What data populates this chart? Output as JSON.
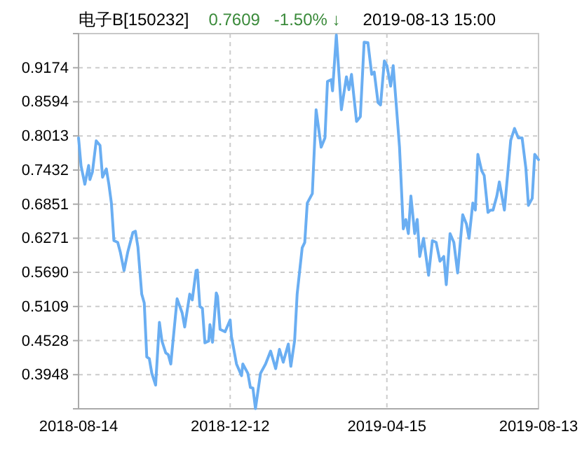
{
  "chart_data": {
    "type": "line",
    "title": "电子B[150232]",
    "annotations": [
      "0.7609",
      "-1.50% ↓",
      "2019-08-13 15:00"
    ],
    "x": [
      "2018-08-14",
      "2018-08-16",
      "2018-08-19",
      "2018-08-22",
      "2018-08-23",
      "2018-08-25",
      "2018-08-28",
      "2018-08-31",
      "2018-09-02",
      "2018-09-05",
      "2018-09-07",
      "2018-09-09",
      "2018-09-11",
      "2018-09-14",
      "2018-09-16",
      "2018-09-19",
      "2018-09-22",
      "2018-09-26",
      "2018-09-28",
      "2018-09-30",
      "2018-10-03",
      "2018-10-05",
      "2018-10-07",
      "2018-10-09",
      "2018-10-11",
      "2018-10-14",
      "2018-10-17",
      "2018-10-19",
      "2018-10-22",
      "2018-10-24",
      "2018-10-26",
      "2018-10-31",
      "2018-11-04",
      "2018-11-06",
      "2018-11-10",
      "2018-11-12",
      "2018-11-15",
      "2018-11-16",
      "2018-11-18",
      "2018-11-20",
      "2018-11-22",
      "2018-11-25",
      "2018-11-26",
      "2018-11-28",
      "2018-12-01",
      "2018-12-02",
      "2018-12-04",
      "2018-12-08",
      "2018-12-12",
      "2018-12-13",
      "2018-12-17",
      "2018-12-21",
      "2018-12-22",
      "2018-12-26",
      "2018-12-28",
      "2018-12-30",
      "2019-01-01",
      "2019-01-05",
      "2019-01-09",
      "2019-01-13",
      "2019-01-17",
      "2019-01-20",
      "2019-01-23",
      "2019-01-27",
      "2019-01-29",
      "2019-02-01",
      "2019-02-03",
      "2019-02-04",
      "2019-02-07",
      "2019-02-09",
      "2019-02-11",
      "2019-02-15",
      "2019-02-18",
      "2019-02-22",
      "2019-02-25",
      "2019-02-27",
      "2019-03-02",
      "2019-03-03",
      "2019-03-06",
      "2019-03-10",
      "2019-03-14",
      "2019-03-16",
      "2019-03-18",
      "2019-03-22",
      "2019-03-25",
      "2019-03-28",
      "2019-03-31",
      "2019-04-03",
      "2019-04-05",
      "2019-04-08",
      "2019-04-10",
      "2019-04-13",
      "2019-04-15",
      "2019-04-18",
      "2019-04-20",
      "2019-04-22",
      "2019-04-25",
      "2019-04-28",
      "2019-04-30",
      "2019-05-02",
      "2019-05-04",
      "2019-05-07",
      "2019-05-09",
      "2019-05-11",
      "2019-05-14",
      "2019-05-18",
      "2019-05-21",
      "2019-05-24",
      "2019-05-27",
      "2019-05-30",
      "2019-06-01",
      "2019-06-04",
      "2019-06-07",
      "2019-06-10",
      "2019-06-14",
      "2019-06-17",
      "2019-06-19",
      "2019-06-22",
      "2019-06-24",
      "2019-06-26",
      "2019-06-29",
      "2019-07-01",
      "2019-07-04",
      "2019-07-06",
      "2019-07-08",
      "2019-07-11",
      "2019-07-13",
      "2019-07-17",
      "2019-07-22",
      "2019-07-25",
      "2019-07-28",
      "2019-07-31",
      "2019-08-03",
      "2019-08-05",
      "2019-08-08",
      "2019-08-10",
      "2019-08-13"
    ],
    "series": [
      {
        "color": "#6aaef2",
        "values": [
          0.798,
          0.75,
          0.719,
          0.751,
          0.727,
          0.74,
          0.793,
          0.785,
          0.731,
          0.745,
          0.719,
          0.687,
          0.623,
          0.62,
          0.604,
          0.572,
          0.604,
          0.637,
          0.639,
          0.612,
          0.532,
          0.517,
          0.425,
          0.422,
          0.397,
          0.377,
          0.484,
          0.452,
          0.432,
          0.429,
          0.413,
          0.524,
          0.5,
          0.476,
          0.532,
          0.522,
          0.572,
          0.573,
          0.511,
          0.508,
          0.449,
          0.452,
          0.48,
          0.45,
          0.534,
          0.528,
          0.472,
          0.468,
          0.488,
          0.46,
          0.413,
          0.393,
          0.413,
          0.397,
          0.373,
          0.372,
          0.337,
          0.397,
          0.413,
          0.435,
          0.405,
          0.438,
          0.416,
          0.447,
          0.409,
          0.453,
          0.532,
          0.552,
          0.611,
          0.62,
          0.687,
          0.703,
          0.846,
          0.782,
          0.798,
          0.894,
          0.897,
          0.878,
          0.973,
          0.846,
          0.902,
          0.88,
          0.906,
          0.826,
          0.834,
          0.961,
          0.96,
          0.906,
          0.91,
          0.858,
          0.854,
          0.929,
          0.921,
          0.886,
          0.921,
          0.866,
          0.782,
          0.643,
          0.659,
          0.635,
          0.699,
          0.635,
          0.659,
          0.596,
          0.627,
          0.564,
          0.623,
          0.62,
          0.588,
          0.596,
          0.548,
          0.635,
          0.62,
          0.568,
          0.667,
          0.651,
          0.627,
          0.687,
          0.675,
          0.77,
          0.742,
          0.734,
          0.671,
          0.675,
          0.675,
          0.699,
          0.723,
          0.675,
          0.794,
          0.814,
          0.798,
          0.798,
          0.746,
          0.683,
          0.695,
          0.77,
          0.7609
        ]
      }
    ],
    "xlim": [
      "2018-08-14",
      "2019-08-13"
    ],
    "xticks": [
      "2018-08-14",
      "2018-12-12",
      "2019-04-15",
      "2019-08-13"
    ],
    "ylim": [
      0.3367,
      0.9755
    ],
    "yticks": [
      0.9174,
      0.8594,
      0.8013,
      0.7432,
      0.6851,
      0.6271,
      {
        "value": 0.569,
        "label": "0.5690"
      },
      0.5109,
      0.4528,
      0.3948
    ],
    "grid": true,
    "line_style": "solid",
    "marker": "none"
  }
}
